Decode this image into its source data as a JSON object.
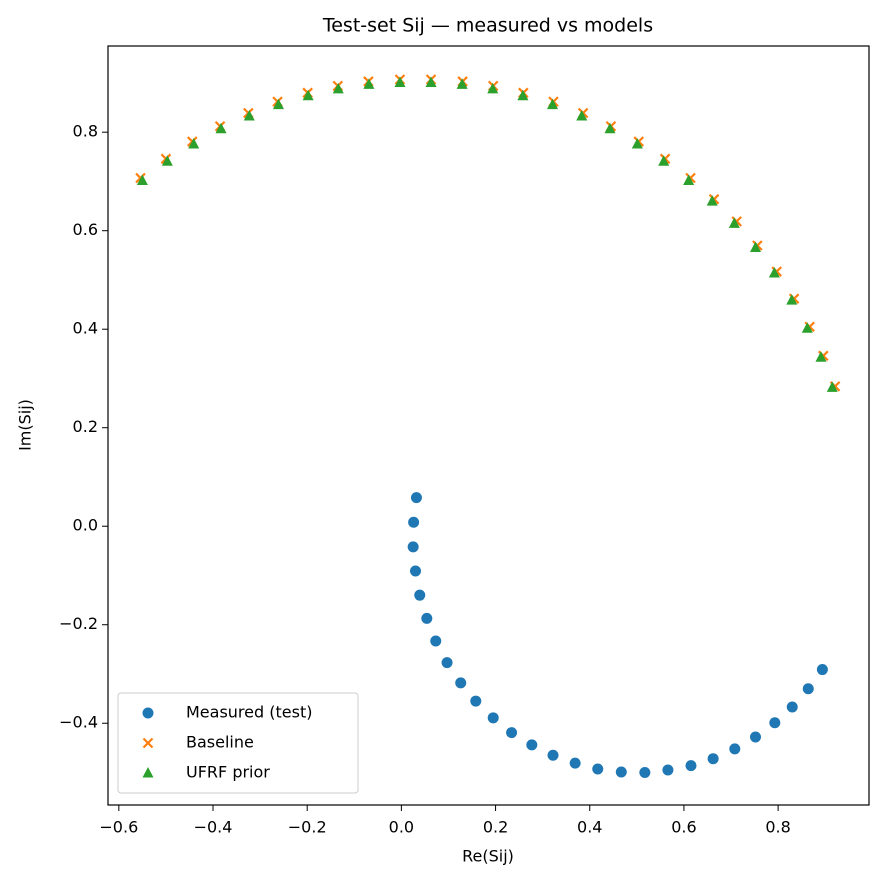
{
  "chart_data": {
    "type": "scatter",
    "title": "Test-set Sij — measured vs models",
    "x_label": "Re(Sij)",
    "y_label": "Im(Sij)",
    "xlim": [
      -0.623,
      0.993
    ],
    "ylim": [
      -0.566,
      0.975
    ],
    "xticks": [
      {
        "value": -0.6,
        "label": "−0.6"
      },
      {
        "value": -0.4,
        "label": "−0.4"
      },
      {
        "value": -0.2,
        "label": "−0.2"
      },
      {
        "value": 0,
        "label": "0.0"
      },
      0.2,
      0.4,
      0.6,
      0.8
    ],
    "yticks": [
      {
        "value": -0.4,
        "label": "−0.4"
      },
      {
        "value": -0.2,
        "label": "−0.2"
      },
      {
        "value": 0,
        "label": "0.0"
      },
      0.2,
      0.4,
      0.6,
      0.8
    ],
    "legend": "lower left",
    "series": [
      {
        "name": "Measured (test)",
        "color": "#1f77b4",
        "marker": "circle",
        "x": [
          0.032,
          0.026,
          0.025,
          0.03,
          0.039,
          0.054,
          0.073,
          0.097,
          0.126,
          0.158,
          0.195,
          0.234,
          0.277,
          0.322,
          0.369,
          0.417,
          0.467,
          0.517,
          0.566,
          0.615,
          0.662,
          0.708,
          0.752,
          0.793,
          0.83,
          0.864,
          0.894
        ],
        "y": [
          0.058,
          0.008,
          -0.042,
          -0.091,
          -0.14,
          -0.187,
          -0.233,
          -0.277,
          -0.318,
          -0.355,
          -0.389,
          -0.419,
          -0.444,
          -0.465,
          -0.481,
          -0.493,
          -0.499,
          -0.5,
          -0.495,
          -0.486,
          -0.472,
          -0.452,
          -0.428,
          -0.399,
          -0.367,
          -0.33,
          -0.291
        ]
      },
      {
        "name": "Baseline",
        "color": "#ff7f0e",
        "marker": "x",
        "x": [
          -0.554,
          -0.5,
          -0.444,
          -0.385,
          -0.325,
          -0.263,
          -0.199,
          -0.135,
          -0.07,
          -0.003,
          0.063,
          0.13,
          0.195,
          0.259,
          0.323,
          0.386,
          0.445,
          0.504,
          0.56,
          0.614,
          0.664,
          0.712,
          0.756,
          0.797,
          0.834,
          0.867,
          0.896,
          0.921
        ],
        "y": [
          0.707,
          0.746,
          0.781,
          0.812,
          0.839,
          0.862,
          0.88,
          0.894,
          0.903,
          0.907,
          0.907,
          0.903,
          0.894,
          0.88,
          0.862,
          0.839,
          0.812,
          0.781,
          0.746,
          0.707,
          0.664,
          0.619,
          0.57,
          0.517,
          0.462,
          0.405,
          0.346,
          0.284
        ]
      },
      {
        "name": "UFRF prior",
        "color": "#2ca02c",
        "marker": "triangle",
        "x": [
          -0.55,
          -0.497,
          -0.441,
          -0.383,
          -0.323,
          -0.261,
          -0.198,
          -0.134,
          -0.069,
          -0.003,
          0.063,
          0.129,
          0.194,
          0.258,
          0.321,
          0.383,
          0.443,
          0.501,
          0.557,
          0.61,
          0.66,
          0.707,
          0.752,
          0.792,
          0.829,
          0.862,
          0.891,
          0.915
        ],
        "y": [
          0.702,
          0.741,
          0.776,
          0.807,
          0.833,
          0.856,
          0.874,
          0.888,
          0.897,
          0.901,
          0.901,
          0.897,
          0.888,
          0.874,
          0.856,
          0.833,
          0.807,
          0.776,
          0.741,
          0.702,
          0.66,
          0.615,
          0.566,
          0.514,
          0.459,
          0.402,
          0.343,
          0.282
        ]
      }
    ]
  }
}
